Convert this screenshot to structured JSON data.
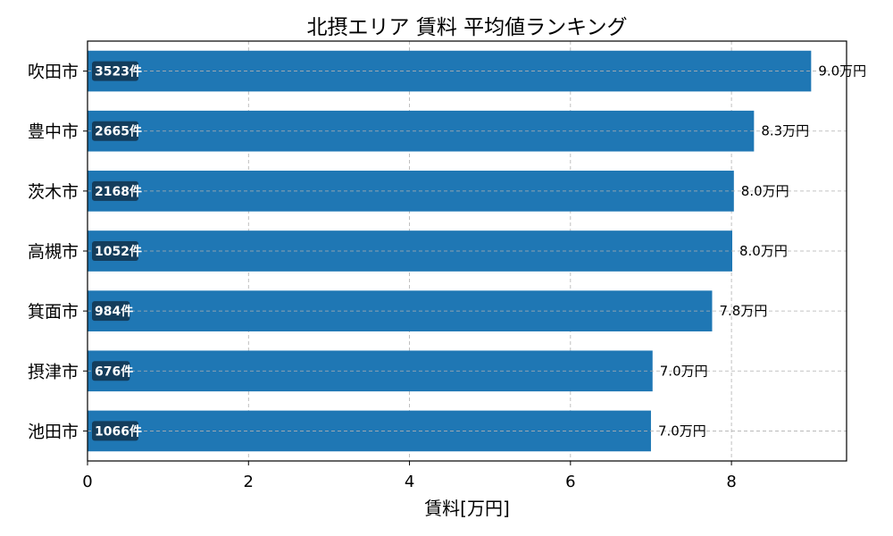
{
  "chart_data": {
    "type": "bar",
    "orientation": "horizontal",
    "title": "北摂エリア 賃料 平均値ランキング",
    "xlabel": "賃料[万円]",
    "ylabel": "",
    "xlim": [
      0,
      9.43
    ],
    "xticks": [
      0,
      2,
      4,
      6,
      8
    ],
    "xtick_labels": [
      "0",
      "2",
      "4",
      "6",
      "8"
    ],
    "grid": true,
    "bar_color": "#1f77b4",
    "count_badge_color": "#143d5c",
    "categories": [
      "吹田市",
      "豊中市",
      "茨木市",
      "高槻市",
      "箕面市",
      "摂津市",
      "池田市"
    ],
    "values": [
      8.99,
      8.28,
      8.03,
      8.01,
      7.76,
      7.02,
      7.0
    ],
    "value_labels": [
      "9.0万円",
      "8.3万円",
      "8.0万円",
      "8.0万円",
      "7.8万円",
      "7.0万円",
      "7.0万円"
    ],
    "count_labels": [
      "3523件",
      "2665件",
      "2168件",
      "1052件",
      "984件",
      "676件",
      "1066件"
    ]
  }
}
